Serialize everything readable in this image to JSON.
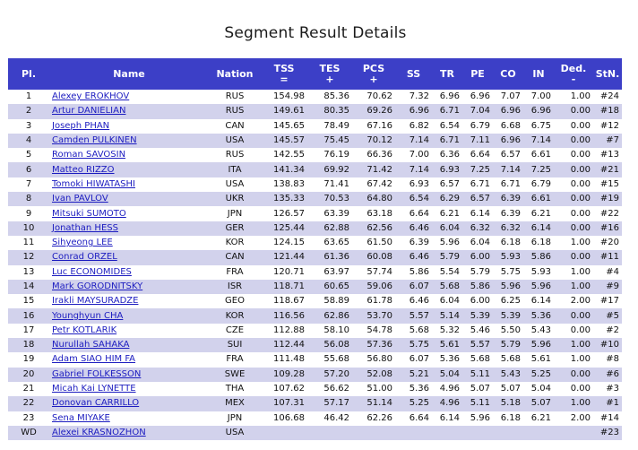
{
  "page": {
    "title": "Segment Result Details"
  },
  "table": {
    "headers": {
      "pl": "Pl.",
      "name": "Name",
      "nation": "Nation",
      "tss": "TSS",
      "tss_sub": "=",
      "tes": "TES",
      "tes_sub": "+",
      "pcs": "PCS",
      "pcs_sub": "+",
      "ss": "SS",
      "tr": "TR",
      "pe": "PE",
      "co": "CO",
      "in": "IN",
      "ded": "Ded.",
      "ded_sub": "-",
      "stn": "StN."
    },
    "rows": [
      {
        "pl": "1",
        "name": "Alexey EROKHOV",
        "nation": "RUS",
        "tss": "154.98",
        "tes": "85.36",
        "pcs": "70.62",
        "ss": "7.32",
        "tr": "6.96",
        "pe": "6.96",
        "co": "7.07",
        "in": "7.00",
        "ded": "1.00",
        "stn": "#24"
      },
      {
        "pl": "2",
        "name": "Artur DANIELIAN",
        "nation": "RUS",
        "tss": "149.61",
        "tes": "80.35",
        "pcs": "69.26",
        "ss": "6.96",
        "tr": "6.71",
        "pe": "7.04",
        "co": "6.96",
        "in": "6.96",
        "ded": "0.00",
        "stn": "#18"
      },
      {
        "pl": "3",
        "name": "Joseph PHAN",
        "nation": "CAN",
        "tss": "145.65",
        "tes": "78.49",
        "pcs": "67.16",
        "ss": "6.82",
        "tr": "6.54",
        "pe": "6.79",
        "co": "6.68",
        "in": "6.75",
        "ded": "0.00",
        "stn": "#12"
      },
      {
        "pl": "4",
        "name": "Camden PULKINEN",
        "nation": "USA",
        "tss": "145.57",
        "tes": "75.45",
        "pcs": "70.12",
        "ss": "7.14",
        "tr": "6.71",
        "pe": "7.11",
        "co": "6.96",
        "in": "7.14",
        "ded": "0.00",
        "stn": "#7"
      },
      {
        "pl": "5",
        "name": "Roman SAVOSIN",
        "nation": "RUS",
        "tss": "142.55",
        "tes": "76.19",
        "pcs": "66.36",
        "ss": "7.00",
        "tr": "6.36",
        "pe": "6.64",
        "co": "6.57",
        "in": "6.61",
        "ded": "0.00",
        "stn": "#13"
      },
      {
        "pl": "6",
        "name": "Matteo RIZZO",
        "nation": "ITA",
        "tss": "141.34",
        "tes": "69.92",
        "pcs": "71.42",
        "ss": "7.14",
        "tr": "6.93",
        "pe": "7.25",
        "co": "7.14",
        "in": "7.25",
        "ded": "0.00",
        "stn": "#21"
      },
      {
        "pl": "7",
        "name": "Tomoki HIWATASHI",
        "nation": "USA",
        "tss": "138.83",
        "tes": "71.41",
        "pcs": "67.42",
        "ss": "6.93",
        "tr": "6.57",
        "pe": "6.71",
        "co": "6.71",
        "in": "6.79",
        "ded": "0.00",
        "stn": "#15"
      },
      {
        "pl": "8",
        "name": "Ivan PAVLOV",
        "nation": "UKR",
        "tss": "135.33",
        "tes": "70.53",
        "pcs": "64.80",
        "ss": "6.54",
        "tr": "6.29",
        "pe": "6.57",
        "co": "6.39",
        "in": "6.61",
        "ded": "0.00",
        "stn": "#19"
      },
      {
        "pl": "9",
        "name": "Mitsuki SUMOTO",
        "nation": "JPN",
        "tss": "126.57",
        "tes": "63.39",
        "pcs": "63.18",
        "ss": "6.64",
        "tr": "6.21",
        "pe": "6.14",
        "co": "6.39",
        "in": "6.21",
        "ded": "0.00",
        "stn": "#22"
      },
      {
        "pl": "10",
        "name": "Jonathan HESS",
        "nation": "GER",
        "tss": "125.44",
        "tes": "62.88",
        "pcs": "62.56",
        "ss": "6.46",
        "tr": "6.04",
        "pe": "6.32",
        "co": "6.32",
        "in": "6.14",
        "ded": "0.00",
        "stn": "#16"
      },
      {
        "pl": "11",
        "name": "Sihyeong LEE",
        "nation": "KOR",
        "tss": "124.15",
        "tes": "63.65",
        "pcs": "61.50",
        "ss": "6.39",
        "tr": "5.96",
        "pe": "6.04",
        "co": "6.18",
        "in": "6.18",
        "ded": "1.00",
        "stn": "#20"
      },
      {
        "pl": "12",
        "name": "Conrad ORZEL",
        "nation": "CAN",
        "tss": "121.44",
        "tes": "61.36",
        "pcs": "60.08",
        "ss": "6.46",
        "tr": "5.79",
        "pe": "6.00",
        "co": "5.93",
        "in": "5.86",
        "ded": "0.00",
        "stn": "#11"
      },
      {
        "pl": "13",
        "name": "Luc ECONOMIDES",
        "nation": "FRA",
        "tss": "120.71",
        "tes": "63.97",
        "pcs": "57.74",
        "ss": "5.86",
        "tr": "5.54",
        "pe": "5.79",
        "co": "5.75",
        "in": "5.93",
        "ded": "1.00",
        "stn": "#4"
      },
      {
        "pl": "14",
        "name": "Mark GORODNITSKY",
        "nation": "ISR",
        "tss": "118.71",
        "tes": "60.65",
        "pcs": "59.06",
        "ss": "6.07",
        "tr": "5.68",
        "pe": "5.86",
        "co": "5.96",
        "in": "5.96",
        "ded": "1.00",
        "stn": "#9"
      },
      {
        "pl": "15",
        "name": "Irakli MAYSURADZE",
        "nation": "GEO",
        "tss": "118.67",
        "tes": "58.89",
        "pcs": "61.78",
        "ss": "6.46",
        "tr": "6.04",
        "pe": "6.00",
        "co": "6.25",
        "in": "6.14",
        "ded": "2.00",
        "stn": "#17"
      },
      {
        "pl": "16",
        "name": "Younghyun CHA",
        "nation": "KOR",
        "tss": "116.56",
        "tes": "62.86",
        "pcs": "53.70",
        "ss": "5.57",
        "tr": "5.14",
        "pe": "5.39",
        "co": "5.39",
        "in": "5.36",
        "ded": "0.00",
        "stn": "#5"
      },
      {
        "pl": "17",
        "name": "Petr KOTLARIK",
        "nation": "CZE",
        "tss": "112.88",
        "tes": "58.10",
        "pcs": "54.78",
        "ss": "5.68",
        "tr": "5.32",
        "pe": "5.46",
        "co": "5.50",
        "in": "5.43",
        "ded": "0.00",
        "stn": "#2"
      },
      {
        "pl": "18",
        "name": "Nurullah SAHAKA",
        "nation": "SUI",
        "tss": "112.44",
        "tes": "56.08",
        "pcs": "57.36",
        "ss": "5.75",
        "tr": "5.61",
        "pe": "5.57",
        "co": "5.79",
        "in": "5.96",
        "ded": "1.00",
        "stn": "#10"
      },
      {
        "pl": "19",
        "name": "Adam SIAO HIM FA",
        "nation": "FRA",
        "tss": "111.48",
        "tes": "55.68",
        "pcs": "56.80",
        "ss": "6.07",
        "tr": "5.36",
        "pe": "5.68",
        "co": "5.68",
        "in": "5.61",
        "ded": "1.00",
        "stn": "#8"
      },
      {
        "pl": "20",
        "name": "Gabriel FOLKESSON",
        "nation": "SWE",
        "tss": "109.28",
        "tes": "57.20",
        "pcs": "52.08",
        "ss": "5.21",
        "tr": "5.04",
        "pe": "5.11",
        "co": "5.43",
        "in": "5.25",
        "ded": "0.00",
        "stn": "#6"
      },
      {
        "pl": "21",
        "name": "Micah Kai LYNETTE",
        "nation": "THA",
        "tss": "107.62",
        "tes": "56.62",
        "pcs": "51.00",
        "ss": "5.36",
        "tr": "4.96",
        "pe": "5.07",
        "co": "5.07",
        "in": "5.04",
        "ded": "0.00",
        "stn": "#3"
      },
      {
        "pl": "22",
        "name": "Donovan CARRILLO",
        "nation": "MEX",
        "tss": "107.31",
        "tes": "57.17",
        "pcs": "51.14",
        "ss": "5.25",
        "tr": "4.96",
        "pe": "5.11",
        "co": "5.18",
        "in": "5.07",
        "ded": "1.00",
        "stn": "#1"
      },
      {
        "pl": "23",
        "name": "Sena MIYAKE",
        "nation": "JPN",
        "tss": "106.68",
        "tes": "46.42",
        "pcs": "62.26",
        "ss": "6.64",
        "tr": "6.14",
        "pe": "5.96",
        "co": "6.18",
        "in": "6.21",
        "ded": "2.00",
        "stn": "#14"
      },
      {
        "pl": "WD",
        "name": "Alexei KRASNOZHON",
        "nation": "USA",
        "tss": "",
        "tes": "",
        "pcs": "",
        "ss": "",
        "tr": "",
        "pe": "",
        "co": "",
        "in": "",
        "ded": "",
        "stn": "#23"
      }
    ]
  }
}
